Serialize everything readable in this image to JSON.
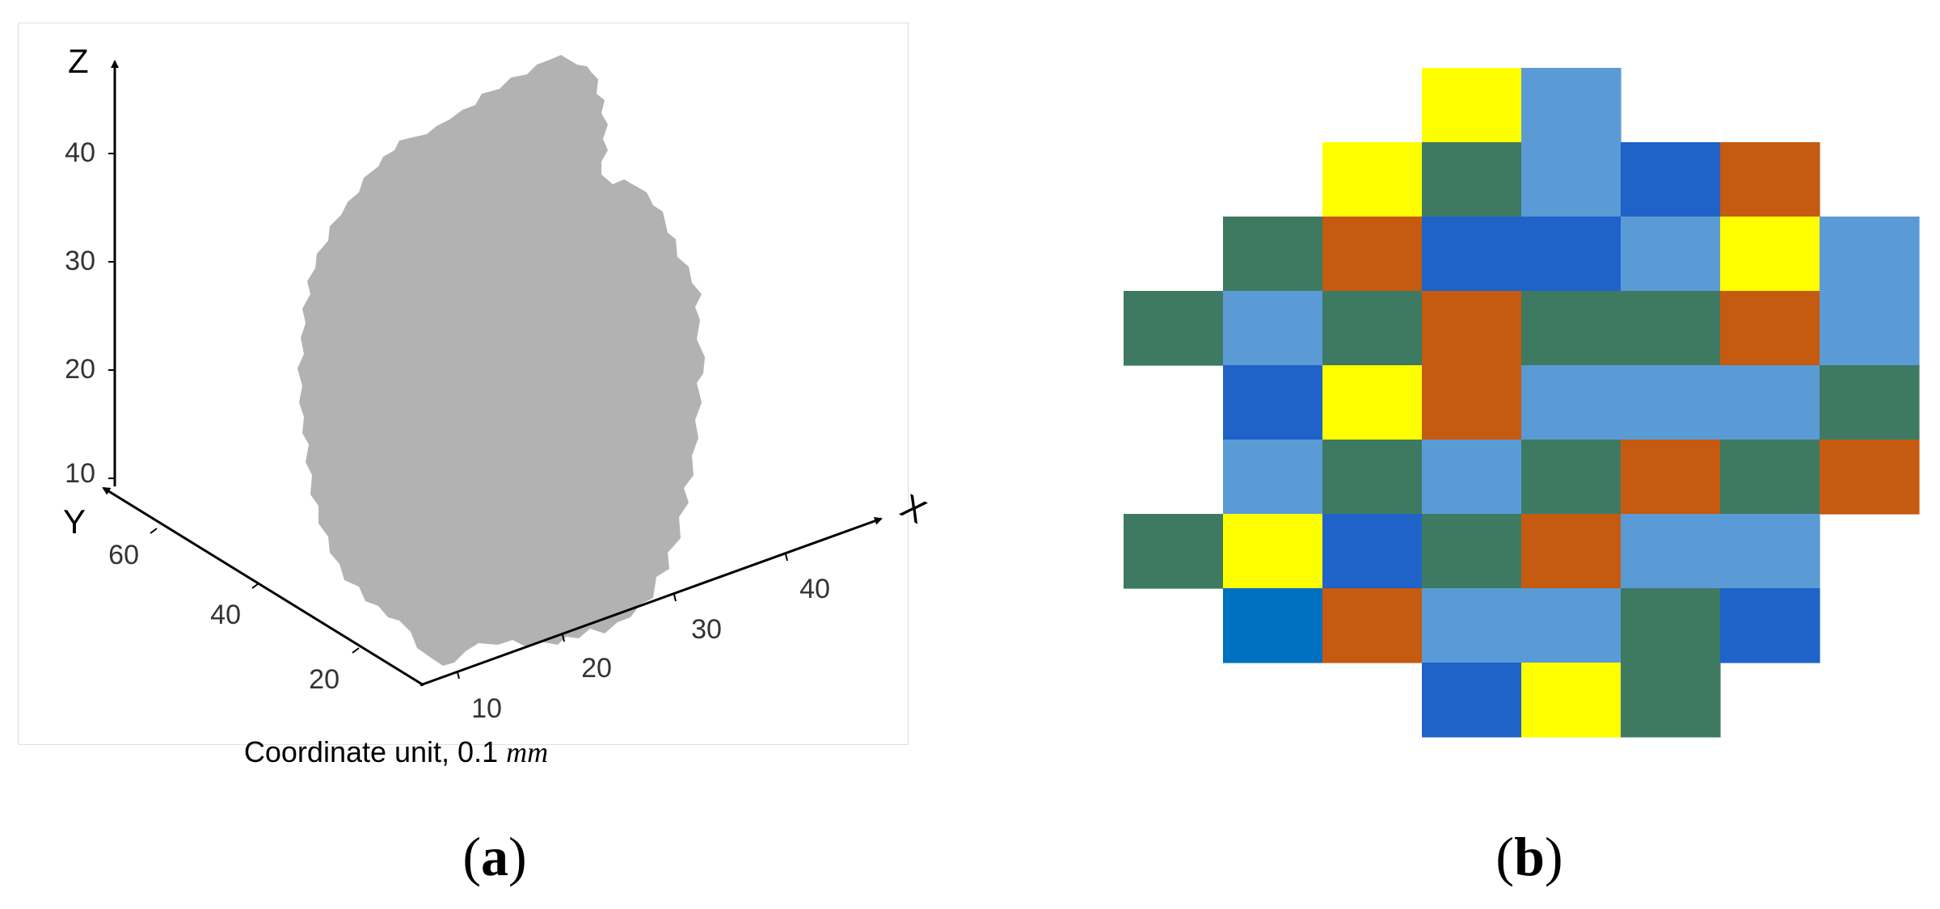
{
  "panel_a": {
    "axes": {
      "z": {
        "name": "Z",
        "ticks": [
          "40",
          "30",
          "20",
          "10"
        ]
      },
      "y": {
        "name": "Y",
        "ticks": [
          "60",
          "40",
          "20"
        ]
      },
      "x": {
        "name": "X",
        "ticks": [
          "10",
          "20",
          "30",
          "40"
        ]
      }
    },
    "caption_prefix": "Coordinate unit, 0.1 ",
    "caption_unit": "mm",
    "shape_color": "#b2b2b2",
    "label_open": "(",
    "label_letter": "a",
    "label_close": ")"
  },
  "panel_b": {
    "label_open": "(",
    "label_letter": "b",
    "label_close": ")",
    "palette": {
      "Y": "#ffff00",
      "L": "#5b9bd5",
      "D": "#1f63c8",
      "M": "#0070c0",
      "G": "#3e7a62",
      "O": "#c55a11"
    },
    "grid_rows": [
      "...YL...",
      "..YGLDO.",
      ".GODDLYL",
      "GLGOGGOL",
      ".DYOLLLG",
      ".LGLGOGO",
      "GYDGOLL.",
      ".MOLLGD.",
      "...DYG.."
    ]
  }
}
